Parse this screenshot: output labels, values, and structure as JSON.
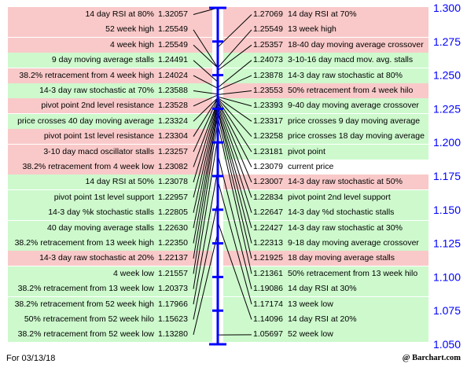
{
  "chart_data": {
    "type": "table",
    "price_axis": {
      "ticks": [
        "1.300",
        "1.275",
        "1.250",
        "1.225",
        "1.200",
        "1.175",
        "1.150",
        "1.125",
        "1.100",
        "1.075",
        "1.050"
      ],
      "range": [
        1.05,
        1.3
      ],
      "color": "#0000ff"
    },
    "left_rows": [
      {
        "label": "14 day RSI at 80%",
        "value": "1.32057",
        "bg": "red"
      },
      {
        "label": "52 week high",
        "value": "1.25549",
        "bg": "red"
      },
      {
        "label": "4 week high",
        "value": "1.25549",
        "bg": "red"
      },
      {
        "label": "9 day moving average stalls",
        "value": "1.24491",
        "bg": "green"
      },
      {
        "label": "38.2% retracement from 4 week high",
        "value": "1.24024",
        "bg": "red"
      },
      {
        "label": "14-3 day raw stochastic at 70%",
        "value": "1.23588",
        "bg": "green"
      },
      {
        "label": "pivot point 2nd level resistance",
        "value": "1.23528",
        "bg": "red"
      },
      {
        "label": "price crosses 40 day moving average",
        "value": "1.23324",
        "bg": "green"
      },
      {
        "label": "pivot point 1st level resistance",
        "value": "1.23304",
        "bg": "red"
      },
      {
        "label": "3-10 day macd oscillator stalls",
        "value": "1.23257",
        "bg": "red"
      },
      {
        "label": "38.2% retracement from 4 week low",
        "value": "1.23082",
        "bg": "red"
      },
      {
        "label": "14 day RSI at 50%",
        "value": "1.23078",
        "bg": "green"
      },
      {
        "label": "pivot point 1st level support",
        "value": "1.22957",
        "bg": "green"
      },
      {
        "label": "14-3 day %k stochastic stalls",
        "value": "1.22805",
        "bg": "green"
      },
      {
        "label": "40 day moving average stalls",
        "value": "1.22630",
        "bg": "green"
      },
      {
        "label": "38.2% retracement from 13 week high",
        "value": "1.22350",
        "bg": "green"
      },
      {
        "label": "14-3 day raw stochastic at 20%",
        "value": "1.22137",
        "bg": "red"
      },
      {
        "label": "4 week low",
        "value": "1.21557",
        "bg": "green"
      },
      {
        "label": "38.2% retracement from 13 week low",
        "value": "1.20373",
        "bg": "green"
      },
      {
        "label": "38.2% retracement from 52 week high",
        "value": "1.17966",
        "bg": "green"
      },
      {
        "label": "50% retracement from 52 week hilo",
        "value": "1.15623",
        "bg": "green"
      },
      {
        "label": "38.2% retracement from 52 week low",
        "value": "1.13280",
        "bg": "green"
      }
    ],
    "right_rows": [
      {
        "value": "1.27069",
        "label": "14 day RSI at 70%",
        "bg": "red"
      },
      {
        "value": "1.25549",
        "label": "13 week high",
        "bg": "red"
      },
      {
        "value": "1.25357",
        "label": "18-40 day moving average crossover",
        "bg": "red"
      },
      {
        "value": "1.24073",
        "label": "3-10-16 day macd mov. avg. stalls",
        "bg": "green"
      },
      {
        "value": "1.23878",
        "label": "14-3 day raw stochastic at 80%",
        "bg": "green"
      },
      {
        "value": "1.23553",
        "label": "50% retracement from 4 week hilo",
        "bg": "red"
      },
      {
        "value": "1.23393",
        "label": "9-40 day moving average crossover",
        "bg": "green"
      },
      {
        "value": "1.23317",
        "label": "price crosses 9 day moving average",
        "bg": "green"
      },
      {
        "value": "1.23258",
        "label": "price crosses 18 day moving average",
        "bg": "green"
      },
      {
        "value": "1.23181",
        "label": "pivot point",
        "bg": "green"
      },
      {
        "value": "1.23079",
        "label": "current price",
        "bg": "white"
      },
      {
        "value": "1.23007",
        "label": "14-3 day raw stochastic at 50%",
        "bg": "red"
      },
      {
        "value": "1.22834",
        "label": "pivot point 2nd level support",
        "bg": "green"
      },
      {
        "value": "1.22647",
        "label": "14-3 day %d stochastic stalls",
        "bg": "green"
      },
      {
        "value": "1.22427",
        "label": "14-3 day raw stochastic at 30%",
        "bg": "green"
      },
      {
        "value": "1.22313",
        "label": "9-18 day moving average crossover",
        "bg": "green"
      },
      {
        "value": "1.21925",
        "label": "18 day moving average stalls",
        "bg": "red"
      },
      {
        "value": "1.21361",
        "label": "50% retracement from 13 week hilo",
        "bg": "green"
      },
      {
        "value": "1.19086",
        "label": "14 day RSI at 30%",
        "bg": "green"
      },
      {
        "value": "1.17174",
        "label": "13 week low",
        "bg": "green"
      },
      {
        "value": "1.14096",
        "label": "14 day RSI at 20%",
        "bg": "green"
      },
      {
        "value": "1.05697",
        "label": "52 week low",
        "bg": "green"
      }
    ],
    "current_price": 1.23079
  },
  "colors": {
    "red": "#f9c9c9",
    "green": "#cdf9cd",
    "white": "#ffffff",
    "axis": "#0000ff",
    "line": "#000000"
  },
  "footer": {
    "date": "For 03/13/18",
    "credit": "@ Barchart.com"
  }
}
